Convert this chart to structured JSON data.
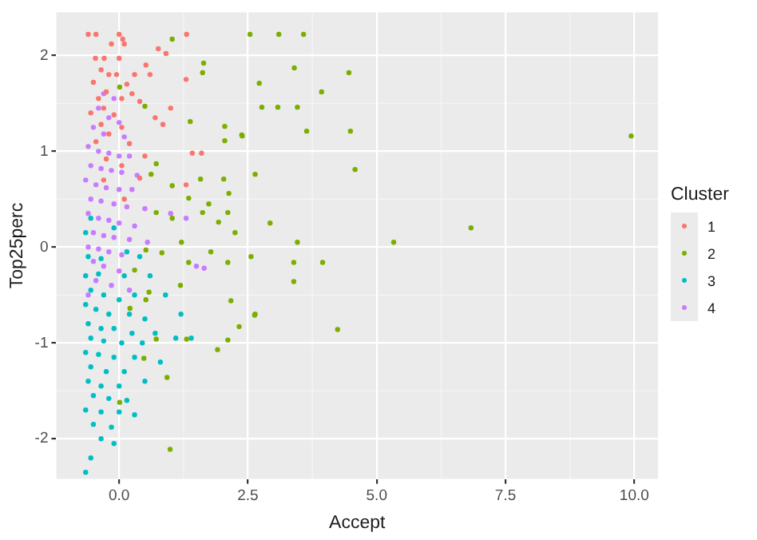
{
  "chart_data": {
    "type": "scatter",
    "xlabel": "Accept",
    "ylabel": "Top25perc",
    "legend_title": "Cluster",
    "legend": "right",
    "grid": true,
    "marker": "circle",
    "xlim": [
      -1.22,
      10.46
    ],
    "ylim": [
      -2.42,
      2.45
    ],
    "xticks": [
      {
        "value": 0,
        "label": "0.0"
      },
      {
        "value": 2.5,
        "label": "2.5"
      },
      {
        "value": 5,
        "label": "5.0"
      },
      {
        "value": 7.5,
        "label": "7.5"
      },
      {
        "value": 10,
        "label": "10.0"
      }
    ],
    "yticks": [
      -2,
      -1,
      0,
      1,
      2
    ],
    "series": [
      {
        "name": "1",
        "color": "#f8766d",
        "x": [
          -0.6,
          -0.45,
          0.0,
          0.07,
          -0.15,
          0.1,
          1.31,
          0.76,
          0.91,
          -0.46,
          -0.29,
          0.0,
          0.52,
          -0.35,
          -0.2,
          -0.05,
          0.3,
          0.6,
          1.3,
          -0.5,
          0.15,
          -0.25,
          0.25,
          -0.4,
          0.05,
          0.4,
          1.0,
          -0.3,
          -0.55,
          -0.1,
          0.7,
          0.85,
          -0.35,
          0.05,
          -0.2,
          -0.45,
          0.2,
          1.42,
          1.6,
          0.5,
          -0.25,
          0.05,
          1.3,
          -0.3,
          0.4,
          0.1
        ],
        "values": [
          2.22,
          2.22,
          2.22,
          2.17,
          2.12,
          2.12,
          2.22,
          2.07,
          2.02,
          1.97,
          1.97,
          1.97,
          1.9,
          1.85,
          1.8,
          1.8,
          1.8,
          1.8,
          1.75,
          1.72,
          1.7,
          1.62,
          1.6,
          1.55,
          1.55,
          1.52,
          1.45,
          1.45,
          1.4,
          1.38,
          1.35,
          1.28,
          1.28,
          1.25,
          1.18,
          1.1,
          1.08,
          0.98,
          0.98,
          0.95,
          0.92,
          0.85,
          0.65,
          0.7,
          0.72,
          0.5
        ]
      },
      {
        "name": "2",
        "color": "#7cae00",
        "x": [
          2.54,
          3.1,
          3.58,
          3.4,
          4.46,
          2.72,
          3.93,
          2.77,
          3.08,
          3.46,
          2.39,
          3.64,
          4.49,
          9.94,
          2.64,
          4.58,
          2.93,
          3.46,
          5.33,
          6.83,
          2.56,
          3.39,
          3.95,
          3.39,
          2.63,
          4.24,
          1.03,
          1.64,
          1.62,
          0.01,
          0.5,
          1.38,
          2.05,
          2.05,
          2.38,
          0.72,
          0.62,
          1.58,
          2.03,
          1.03,
          2.13,
          1.35,
          1.74,
          1.03,
          1.62,
          1.93,
          2.11,
          2.25,
          0.72,
          1.78,
          1.21,
          1.35,
          0.83,
          0.52,
          2.11,
          1.19,
          0.58,
          0.3,
          2.17,
          2.33,
          2.64,
          2.11,
          1.91,
          0.72,
          1.31,
          0.48,
          0.93,
          0.21,
          0.52,
          0.01,
          0.99
        ],
        "values": [
          2.22,
          2.22,
          2.22,
          1.87,
          1.82,
          1.71,
          1.62,
          1.46,
          1.46,
          1.46,
          1.16,
          1.21,
          1.21,
          1.16,
          0.76,
          0.81,
          0.25,
          0.05,
          0.05,
          0.2,
          -0.1,
          -0.16,
          -0.16,
          -0.36,
          -0.71,
          -0.86,
          2.17,
          1.92,
          1.82,
          1.67,
          1.47,
          1.31,
          1.26,
          1.11,
          1.17,
          0.87,
          0.76,
          0.71,
          0.71,
          0.64,
          0.56,
          0.51,
          0.45,
          0.3,
          0.36,
          0.26,
          0.36,
          0.15,
          0.36,
          -0.05,
          0.05,
          -0.16,
          -0.06,
          -0.03,
          -0.16,
          -0.4,
          -0.47,
          -0.24,
          -0.56,
          -0.83,
          -0.7,
          -0.97,
          -1.07,
          -0.96,
          -0.96,
          -1.16,
          -1.36,
          -0.64,
          -0.55,
          -1.62,
          -2.11
        ]
      },
      {
        "name": "3",
        "color": "#00bfc4",
        "x": [
          -0.55,
          -0.65,
          -0.1,
          0.15,
          -0.6,
          -0.35,
          0.4,
          -0.65,
          -0.4,
          0.1,
          0.6,
          -0.55,
          -0.3,
          0.0,
          0.3,
          0.9,
          -0.65,
          -0.45,
          -0.2,
          0.2,
          0.5,
          1.2,
          -0.6,
          -0.35,
          -0.1,
          0.25,
          0.7,
          -0.55,
          -0.3,
          0.05,
          0.45,
          1.1,
          1.4,
          -0.65,
          -0.4,
          -0.1,
          0.3,
          0.8,
          -0.55,
          -0.25,
          0.1,
          -0.6,
          -0.35,
          0.0,
          0.5,
          -0.5,
          -0.2,
          0.15,
          -0.65,
          -0.35,
          0.0,
          0.3,
          -0.5,
          -0.15,
          -0.35,
          -0.1,
          -0.55,
          -0.65
        ],
        "values": [
          0.3,
          0.15,
          0.2,
          -0.05,
          -0.1,
          -0.12,
          -0.1,
          -0.3,
          -0.28,
          -0.3,
          -0.3,
          -0.45,
          -0.5,
          -0.55,
          -0.5,
          -0.5,
          -0.6,
          -0.65,
          -0.7,
          -0.7,
          -0.75,
          -0.7,
          -0.8,
          -0.85,
          -0.85,
          -0.9,
          -0.9,
          -0.95,
          -0.98,
          -1.0,
          -1.0,
          -0.95,
          -0.95,
          -1.1,
          -1.12,
          -1.15,
          -1.15,
          -1.2,
          -1.25,
          -1.3,
          -1.3,
          -1.4,
          -1.45,
          -1.45,
          -1.4,
          -1.55,
          -1.58,
          -1.6,
          -1.7,
          -1.72,
          -1.72,
          -1.75,
          -1.85,
          -1.88,
          -2.0,
          -2.05,
          -2.2,
          -2.35
        ]
      },
      {
        "name": "4",
        "color": "#c77cff",
        "x": [
          -0.3,
          -0.1,
          -0.4,
          -0.2,
          0.0,
          -0.5,
          -0.3,
          0.1,
          -0.6,
          -0.4,
          -0.2,
          0.0,
          0.2,
          -0.55,
          -0.35,
          -0.15,
          0.05,
          0.35,
          -0.65,
          -0.45,
          -0.25,
          0.0,
          0.25,
          -0.55,
          -0.35,
          -0.1,
          0.15,
          0.5,
          -0.6,
          -0.4,
          -0.2,
          0.0,
          0.3,
          1.3,
          1.0,
          -0.5,
          -0.3,
          -0.1,
          0.2,
          0.55,
          -0.6,
          -0.4,
          -0.2,
          0.05,
          1.5,
          1.65,
          -0.5,
          -0.3,
          0.0,
          -0.45,
          -0.15,
          0.2,
          -0.6
        ],
        "values": [
          1.6,
          1.55,
          1.45,
          1.35,
          1.3,
          1.25,
          1.18,
          1.15,
          1.05,
          1.0,
          0.98,
          0.95,
          0.95,
          0.85,
          0.82,
          0.8,
          0.78,
          0.75,
          0.7,
          0.65,
          0.62,
          0.6,
          0.6,
          0.5,
          0.48,
          0.45,
          0.42,
          0.4,
          0.35,
          0.3,
          0.28,
          0.25,
          0.22,
          0.3,
          0.35,
          0.15,
          0.12,
          0.1,
          0.08,
          0.05,
          0.0,
          -0.02,
          -0.05,
          -0.08,
          -0.2,
          -0.22,
          -0.15,
          -0.2,
          -0.25,
          -0.35,
          -0.4,
          -0.45,
          -0.5
        ]
      }
    ]
  }
}
